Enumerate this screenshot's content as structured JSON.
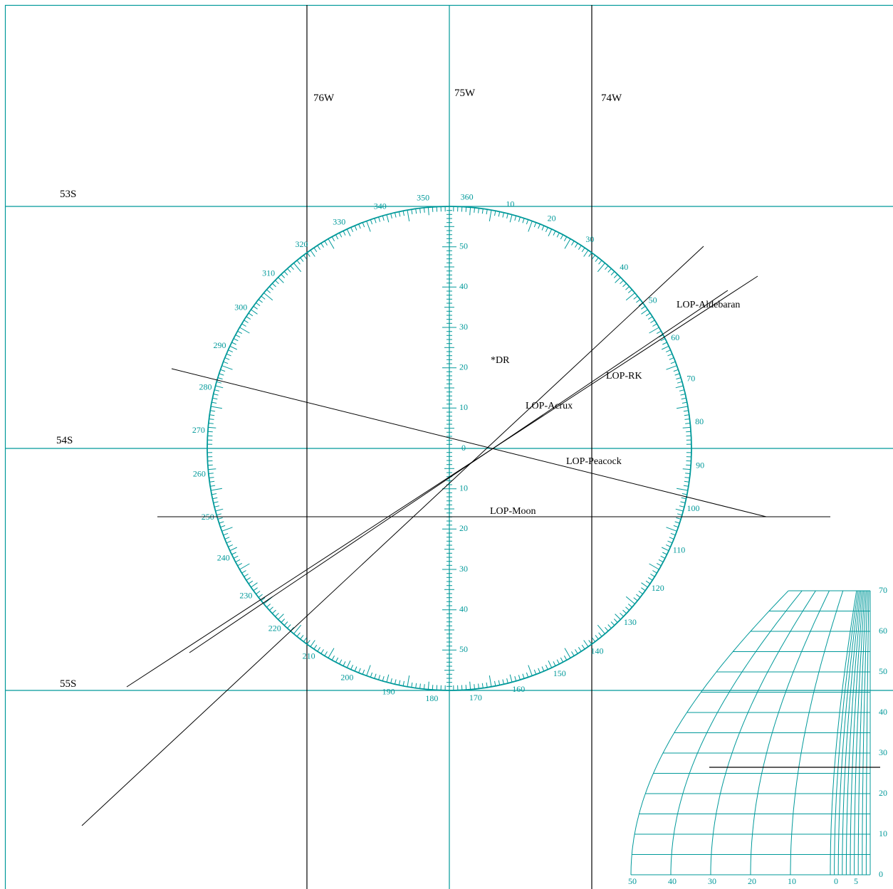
{
  "colors": {
    "plotting_grid": "#00999a",
    "lines": "#000000",
    "background": "#ffffff"
  },
  "meridians": [
    {
      "label": "76W",
      "longitude": -76
    },
    {
      "label": "75W",
      "longitude": -75
    },
    {
      "label": "74W",
      "longitude": -74
    }
  ],
  "parallels": [
    {
      "label": "53S",
      "latitude": -53
    },
    {
      "label": "54S",
      "latitude": -54
    },
    {
      "label": "55S",
      "latitude": -55
    }
  ],
  "compass_rose": {
    "ring_labels": [
      "360",
      "10",
      "20",
      "30",
      "40",
      "50",
      "60",
      "70",
      "80",
      "90",
      "100",
      "110",
      "120",
      "130",
      "140",
      "150",
      "160",
      "170",
      "180",
      "190",
      "200",
      "210",
      "220",
      "230",
      "240",
      "250",
      "260",
      "270",
      "280",
      "290",
      "300",
      "310",
      "320",
      "330",
      "340",
      "350"
    ],
    "minute_scale_labels": [
      "50",
      "40",
      "30",
      "20",
      "10",
      "0",
      "10",
      "20",
      "30",
      "40",
      "50"
    ]
  },
  "dr_marker": "*DR",
  "lines_of_position": [
    {
      "label": "LOP-Aldebaran"
    },
    {
      "label": "LOP-RK"
    },
    {
      "label": "LOP-Acrux"
    },
    {
      "label": "LOP-Peacock"
    },
    {
      "label": "LOP-Moon"
    }
  ],
  "longitude_scale": {
    "latitude_labels": [
      "70",
      "60",
      "50",
      "40",
      "30",
      "20",
      "10",
      "0"
    ],
    "minute_labels": [
      "50",
      "40",
      "30",
      "20",
      "10",
      "0",
      "5"
    ]
  }
}
